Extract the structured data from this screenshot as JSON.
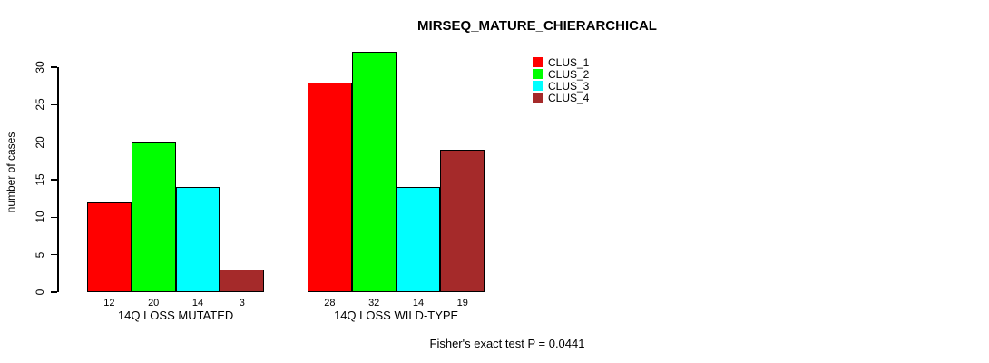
{
  "chart_data": {
    "type": "bar",
    "title": "MIRSEQ_MATURE_CHIERARCHICAL",
    "ylabel": "number of cases",
    "yticks": [
      0,
      5,
      10,
      15,
      20,
      25,
      30
    ],
    "ylim": [
      0,
      30
    ],
    "grid": false,
    "legend_position": "top-right",
    "groups": [
      {
        "label": "14Q LOSS MUTATED",
        "values": [
          12,
          20,
          14,
          3
        ]
      },
      {
        "label": "14Q LOSS WILD-TYPE",
        "values": [
          28,
          32,
          14,
          19
        ]
      }
    ],
    "series": [
      {
        "name": "CLUS_1",
        "color": "#FF0000"
      },
      {
        "name": "CLUS_2",
        "color": "#00FF00"
      },
      {
        "name": "CLUS_3",
        "color": "#00FFFF"
      },
      {
        "name": "CLUS_4",
        "color": "#A52A2A"
      }
    ],
    "footer": "Fisher's exact test P = 0.0441"
  }
}
